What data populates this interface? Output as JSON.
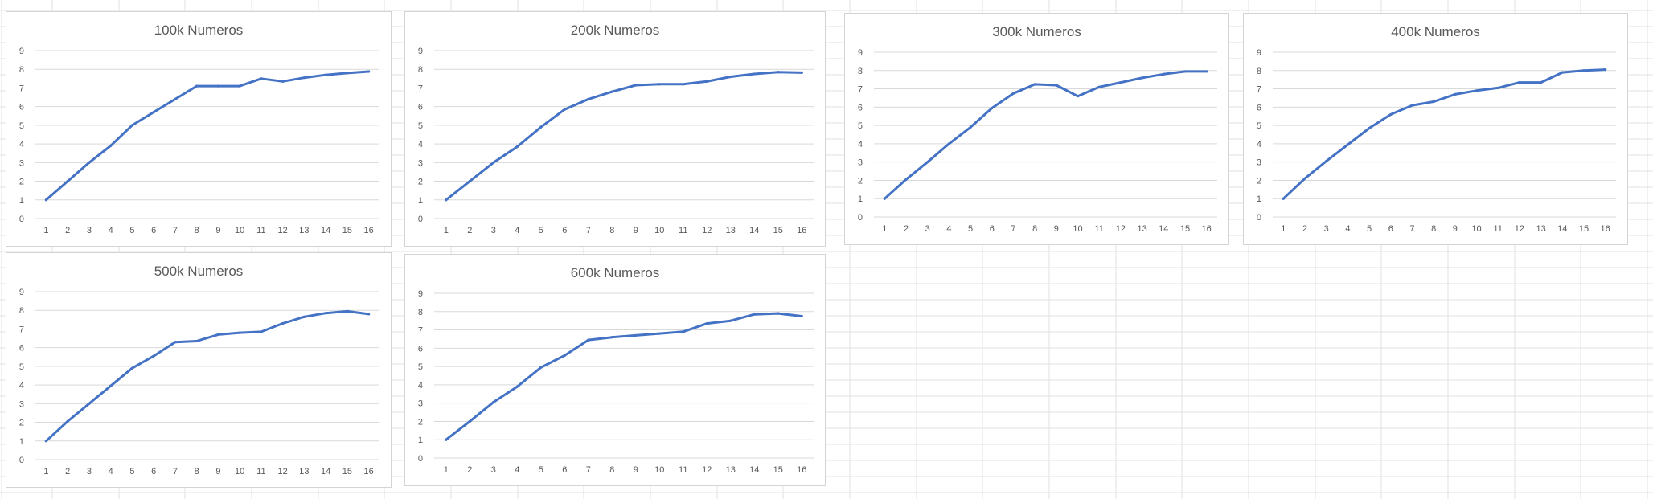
{
  "chart_data": [
    {
      "type": "line",
      "title": "100k Numeros",
      "categories": [
        "1",
        "2",
        "3",
        "4",
        "5",
        "6",
        "7",
        "8",
        "9",
        "10",
        "11",
        "12",
        "13",
        "14",
        "15",
        "16"
      ],
      "series": [
        {
          "values": [
            1.0,
            2.0,
            3.0,
            3.9,
            5.0,
            5.7,
            6.4,
            7.1,
            7.1,
            7.1,
            7.5,
            7.35,
            7.55,
            7.7,
            7.8,
            7.88
          ]
        }
      ],
      "ylim": [
        0,
        9
      ],
      "yticks": [
        "0",
        "1",
        "2",
        "3",
        "4",
        "5",
        "6",
        "7",
        "8",
        "9"
      ],
      "grid": true,
      "legend": "none"
    },
    {
      "type": "line",
      "title": "200k Numeros",
      "categories": [
        "1",
        "2",
        "3",
        "4",
        "5",
        "6",
        "7",
        "8",
        "9",
        "10",
        "11",
        "12",
        "13",
        "14",
        "15",
        "16"
      ],
      "series": [
        {
          "values": [
            1.0,
            2.0,
            3.0,
            3.85,
            4.9,
            5.85,
            6.4,
            6.8,
            7.15,
            7.2,
            7.2,
            7.35,
            7.6,
            7.75,
            7.85,
            7.82
          ]
        }
      ],
      "ylim": [
        0,
        9
      ],
      "yticks": [
        "0",
        "1",
        "2",
        "3",
        "4",
        "5",
        "6",
        "7",
        "8",
        "9"
      ],
      "grid": true,
      "legend": "none"
    },
    {
      "type": "line",
      "title": "300k Numeros",
      "categories": [
        "1",
        "2",
        "3",
        "4",
        "5",
        "6",
        "7",
        "8",
        "9",
        "10",
        "11",
        "12",
        "13",
        "14",
        "15",
        "16"
      ],
      "series": [
        {
          "values": [
            1.0,
            2.05,
            3.0,
            4.0,
            4.9,
            5.95,
            6.75,
            7.25,
            7.2,
            6.6,
            7.1,
            7.35,
            7.6,
            7.8,
            7.95,
            7.95
          ]
        }
      ],
      "ylim": [
        0,
        9
      ],
      "yticks": [
        "0",
        "1",
        "2",
        "3",
        "4",
        "5",
        "6",
        "7",
        "8",
        "9"
      ],
      "grid": true,
      "legend": "none"
    },
    {
      "type": "line",
      "title": "400k Numeros",
      "categories": [
        "1",
        "2",
        "3",
        "4",
        "5",
        "6",
        "7",
        "8",
        "9",
        "10",
        "11",
        "12",
        "13",
        "14",
        "15",
        "16"
      ],
      "series": [
        {
          "values": [
            1.0,
            2.1,
            3.05,
            3.95,
            4.85,
            5.6,
            6.1,
            6.3,
            6.7,
            6.9,
            7.05,
            7.35,
            7.35,
            7.9,
            8.0,
            8.05
          ]
        }
      ],
      "ylim": [
        0,
        9
      ],
      "yticks": [
        "0",
        "1",
        "2",
        "3",
        "4",
        "5",
        "6",
        "7",
        "8",
        "9"
      ],
      "grid": true,
      "legend": "none"
    },
    {
      "type": "line",
      "title": "500k Numeros",
      "categories": [
        "1",
        "2",
        "3",
        "4",
        "5",
        "6",
        "7",
        "8",
        "9",
        "10",
        "11",
        "12",
        "13",
        "14",
        "15",
        "16"
      ],
      "series": [
        {
          "values": [
            1.0,
            2.05,
            3.0,
            3.95,
            4.9,
            5.55,
            6.3,
            6.35,
            6.7,
            6.8,
            6.85,
            7.3,
            7.65,
            7.85,
            7.95,
            7.8
          ]
        }
      ],
      "ylim": [
        0,
        9
      ],
      "yticks": [
        "0",
        "1",
        "2",
        "3",
        "4",
        "5",
        "6",
        "7",
        "8",
        "9"
      ],
      "grid": true,
      "legend": "none"
    },
    {
      "type": "line",
      "title": "600k Numeros",
      "categories": [
        "1",
        "2",
        "3",
        "4",
        "5",
        "6",
        "7",
        "8",
        "9",
        "10",
        "11",
        "12",
        "13",
        "14",
        "15",
        "16"
      ],
      "series": [
        {
          "values": [
            1.0,
            2.0,
            3.05,
            3.9,
            4.95,
            5.6,
            6.45,
            6.6,
            6.7,
            6.8,
            6.9,
            7.35,
            7.5,
            7.85,
            7.9,
            7.75
          ]
        }
      ],
      "ylim": [
        0,
        9
      ],
      "yticks": [
        "0",
        "1",
        "2",
        "3",
        "4",
        "5",
        "6",
        "7",
        "8",
        "9"
      ],
      "grid": true,
      "legend": "none"
    }
  ],
  "colors": {
    "series_line": "#4472c4",
    "sheet_gridline": "#e2e2e2",
    "chart_gridline": "#d9d9d9",
    "chart_border": "#d4d4d4",
    "tick_text": "#595959"
  }
}
